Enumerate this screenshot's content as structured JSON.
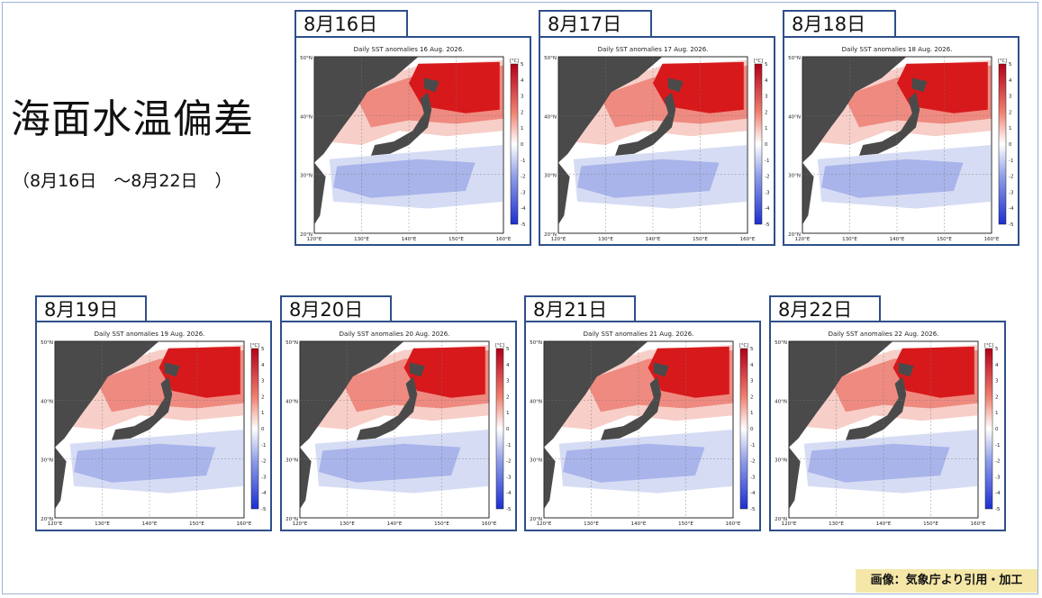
{
  "page": {
    "title": "海面水温偏差",
    "subtitle": "（8月16日　～8月22日　）",
    "credit": "画像：気象庁より引用・加工"
  },
  "colors": {
    "land": "#4a4a4a",
    "warm_strong": "#d7191c",
    "warm_mid": "#ef8a80",
    "warm_light": "#f7cfc8",
    "cool_light": "#d6dcf4",
    "cool_mid": "#a9b4ea",
    "frame": "#2f4f8a"
  },
  "colorbar_labels": [
    "5",
    "4",
    "3",
    "2",
    "1",
    "0",
    "-1",
    "-2",
    "-3",
    "-4",
    "-5"
  ],
  "colorbar_unit": "[°C]",
  "lat_labels": [
    "50°N",
    "40°N",
    "30°N",
    "20°N"
  ],
  "lon_labels": [
    "120°E",
    "130°E",
    "140°E",
    "150°E",
    "160°E"
  ],
  "maps": [
    {
      "date_label": "8月16日",
      "map_title": "Daily SST anomalies 16 Aug. 2026."
    },
    {
      "date_label": "8月17日",
      "map_title": "Daily SST anomalies 17 Aug. 2026."
    },
    {
      "date_label": "8月18日",
      "map_title": "Daily SST anomalies 18 Aug. 2026."
    },
    {
      "date_label": "8月19日",
      "map_title": "Daily SST anomalies 19 Aug. 2026."
    },
    {
      "date_label": "8月20日",
      "map_title": "Daily SST anomalies 20 Aug. 2026."
    },
    {
      "date_label": "8月21日",
      "map_title": "Daily SST anomalies 21 Aug. 2026."
    },
    {
      "date_label": "8月22日",
      "map_title": "Daily SST anomalies 22 Aug. 2026."
    }
  ]
}
